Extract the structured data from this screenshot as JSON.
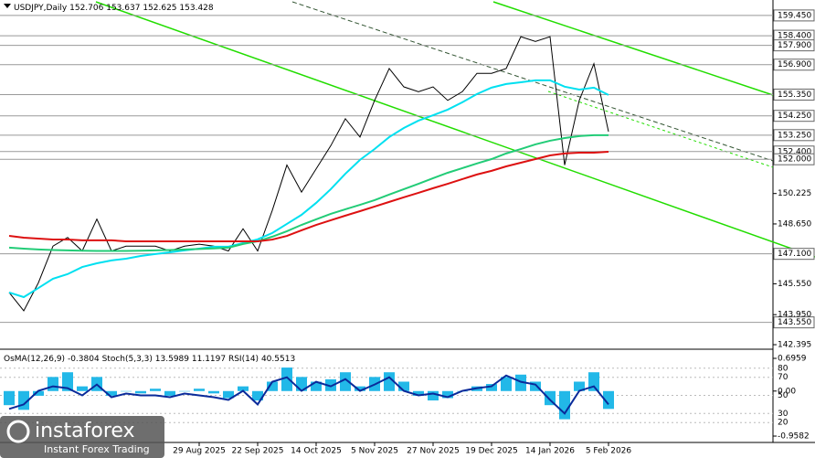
{
  "header": {
    "symbol": "USDJPY,Daily",
    "open": 152.706,
    "high": 153.637,
    "low": 152.625,
    "close": 153.428
  },
  "chart_data": [
    {
      "type": "line",
      "categories": [
        null,
        null,
        null,
        null,
        null,
        null,
        null,
        null,
        null,
        null,
        null,
        null,
        null,
        "29 Aug 2025",
        null,
        null,
        null,
        "22 Sep 2025",
        null,
        null,
        null,
        "14 Oct 2025",
        null,
        null,
        null,
        "5 Nov 2025",
        null,
        null,
        null,
        "27 Nov 2025",
        null,
        null,
        null,
        "19 Dec 2025",
        null,
        null,
        null,
        "14 Jan 2026",
        null,
        null,
        null,
        "5 Feb 2026"
      ],
      "series": [
        {
          "color": "#000000",
          "values": [
            145.1,
            144.15,
            145.6,
            147.5,
            147.95,
            147.25,
            148.9,
            147.25,
            147.5,
            147.5,
            147.5,
            147.25,
            147.5,
            147.6,
            147.5,
            147.25,
            148.4,
            147.25,
            149.35,
            151.7,
            150.3,
            151.5,
            152.7,
            154.1,
            153.15,
            155.05,
            156.7,
            155.75,
            155.5,
            155.75,
            155.05,
            155.5,
            156.45,
            156.45,
            156.7,
            158.35,
            158.1,
            158.35,
            151.7,
            155.05,
            156.95,
            153.43
          ]
        },
        {
          "color": "#00e0f0",
          "values": [
            145.1,
            144.86,
            145.33,
            145.81,
            146.05,
            146.42,
            146.61,
            146.76,
            146.85,
            146.99,
            147.09,
            147.18,
            147.28,
            147.37,
            147.47,
            147.47,
            147.66,
            147.85,
            148.18,
            148.65,
            149.12,
            149.74,
            150.45,
            151.25,
            151.97,
            152.53,
            153.15,
            153.62,
            154.0,
            154.28,
            154.57,
            154.95,
            155.38,
            155.71,
            155.9,
            155.99,
            156.09,
            156.09,
            155.76,
            155.61,
            155.71,
            155.33
          ]
        },
        {
          "color": "#22cc77",
          "values": [
            147.42,
            147.37,
            147.33,
            147.3,
            147.28,
            147.26,
            147.25,
            147.25,
            147.25,
            147.26,
            147.28,
            147.3,
            147.33,
            147.35,
            147.38,
            147.42,
            147.61,
            147.75,
            147.99,
            148.27,
            148.6,
            148.89,
            149.17,
            149.41,
            149.64,
            149.88,
            150.17,
            150.45,
            150.73,
            151.02,
            151.3,
            151.54,
            151.78,
            152.01,
            152.3,
            152.53,
            152.77,
            152.96,
            153.1,
            153.2,
            153.25,
            153.25
          ]
        },
        {
          "color": "#dd1111",
          "values": [
            148.03,
            147.94,
            147.89,
            147.84,
            147.84,
            147.8,
            147.8,
            147.8,
            147.75,
            147.75,
            147.75,
            147.75,
            147.75,
            147.75,
            147.75,
            147.75,
            147.75,
            147.75,
            147.84,
            148.03,
            148.32,
            148.6,
            148.84,
            149.08,
            149.31,
            149.55,
            149.79,
            150.03,
            150.26,
            150.5,
            150.73,
            150.97,
            151.21,
            151.4,
            151.63,
            151.82,
            152.01,
            152.2,
            152.3,
            152.34,
            152.34,
            152.39
          ]
        }
      ],
      "ylim": [
        142.16,
        160.25
      ],
      "yticks": [
        {
          "value": 150.225,
          "label": "150.225"
        },
        {
          "value": 148.65,
          "label": "148.650"
        },
        {
          "value": 145.55,
          "label": "145.550"
        },
        {
          "value": 143.95,
          "label": "143.950"
        },
        {
          "value": 142.395,
          "label": "142.395"
        }
      ],
      "levels": [
        {
          "value": 159.45,
          "label": "159.450"
        },
        {
          "value": 158.4,
          "label": "158.400"
        },
        {
          "value": 157.9,
          "label": "157.900"
        },
        {
          "value": 156.9,
          "label": "156.900"
        },
        {
          "value": 155.35,
          "label": "155.350"
        },
        {
          "value": 154.25,
          "label": "154.250"
        },
        {
          "value": 153.25,
          "label": "153.250"
        },
        {
          "value": 152.4,
          "label": "152.400"
        },
        {
          "value": 152.0,
          "label": "152.000"
        },
        {
          "value": 147.1,
          "label": "147.100"
        },
        {
          "value": 143.55,
          "label": "143.550"
        }
      ]
    },
    {
      "type": "osma",
      "labels": {
        "osma": "OsMA(12,26,9)",
        "stoch": "Stoch(5,3,3)",
        "rsi": "RSI(14)"
      },
      "osma_value": -0.3804,
      "stoch_values": [
        13.5989,
        11.1197
      ],
      "rsi_value": 40.5513,
      "color": "#22b8e8",
      "values": [
        -0.3,
        -0.4,
        -0.1,
        0.3,
        0.4,
        0.1,
        0.3,
        -0.1,
        0,
        -0.05,
        0.05,
        -0.1,
        0,
        0.05,
        -0.05,
        -0.15,
        0.1,
        -0.2,
        0.2,
        0.5,
        0.3,
        0.2,
        0.25,
        0.4,
        0.1,
        0.3,
        0.4,
        0.2,
        -0.1,
        -0.2,
        -0.15,
        0,
        0.1,
        0.15,
        0.3,
        0.35,
        0.2,
        -0.3,
        -0.6,
        0.2,
        0.4,
        -0.38
      ],
      "series": [
        {
          "color": "#0a2a9a",
          "axis": "y2",
          "values": [
            35,
            40,
            55,
            60,
            58,
            50,
            62,
            48,
            52,
            50,
            50,
            48,
            52,
            50,
            48,
            45,
            55,
            40,
            65,
            70,
            55,
            65,
            60,
            68,
            55,
            62,
            70,
            55,
            50,
            52,
            48,
            55,
            58,
            60,
            72,
            65,
            62,
            45,
            30,
            55,
            60,
            40
          ]
        }
      ],
      "ylim": [
        -1.055,
        0.871
      ],
      "yticks": [
        0.6959,
        {
          "value": 0,
          "label": "0.00"
        },
        -0.9582
      ],
      "y2lim": [
        0,
        100
      ],
      "y2ticks": [
        80,
        70,
        50,
        30,
        20
      ]
    }
  ],
  "logo": {
    "name": "instaforex",
    "tagline": "Instant Forex Trading"
  }
}
